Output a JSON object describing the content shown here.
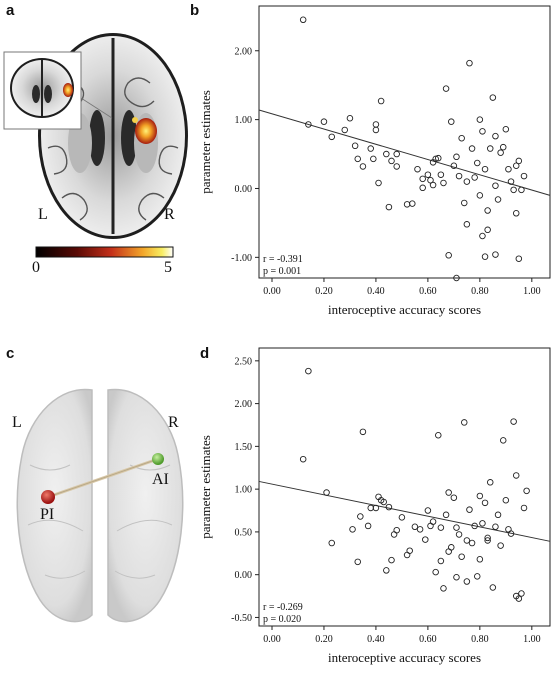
{
  "panels": {
    "a": {
      "letter": "a",
      "left_label": "L",
      "right_label": "R",
      "colorbar": {
        "min_label": "0",
        "max_label": "5",
        "min": 0,
        "max": 5
      }
    },
    "b": {
      "letter": "b"
    },
    "c": {
      "letter": "c",
      "left_label": "L",
      "right_label": "R",
      "node1_label": "PI",
      "node2_label": "AI",
      "colors": {
        "node1": "#b01c1c",
        "node2": "#6fc04a",
        "edge": "#d8c8a8"
      }
    },
    "d": {
      "letter": "d"
    }
  },
  "chart_data": [
    {
      "type": "scatter",
      "panel": "b",
      "xlabel": "interoceptive accuracy scores",
      "ylabel": "parameter estimates",
      "xlim": [
        -0.05,
        1.07
      ],
      "ylim": [
        -1.3,
        2.65
      ],
      "xticks": [
        "0.00",
        "0.20",
        "0.40",
        "0.60",
        "0.80",
        "1.00"
      ],
      "yticks": [
        "-1.00",
        "0.00",
        "1.00",
        "2.00"
      ],
      "xtick_values": [
        0,
        0.2,
        0.4,
        0.6,
        0.8,
        1.0
      ],
      "ytick_values": [
        -1,
        0,
        1,
        2
      ],
      "stats": [
        "r = -0.391",
        "p = 0.001"
      ],
      "fit_line": {
        "x": [
          -0.05,
          1.07
        ],
        "y": [
          1.14,
          -0.1
        ]
      },
      "points": [
        [
          0.12,
          2.45
        ],
        [
          0.14,
          0.93
        ],
        [
          0.2,
          0.97
        ],
        [
          0.23,
          0.75
        ],
        [
          0.28,
          0.85
        ],
        [
          0.3,
          1.02
        ],
        [
          0.32,
          0.62
        ],
        [
          0.33,
          0.43
        ],
        [
          0.35,
          0.32
        ],
        [
          0.38,
          0.58
        ],
        [
          0.39,
          0.43
        ],
        [
          0.4,
          0.85
        ],
        [
          0.4,
          0.93
        ],
        [
          0.41,
          0.08
        ],
        [
          0.42,
          1.27
        ],
        [
          0.44,
          0.5
        ],
        [
          0.45,
          -0.27
        ],
        [
          0.46,
          0.4
        ],
        [
          0.48,
          0.5
        ],
        [
          0.52,
          -0.23
        ],
        [
          0.54,
          -0.22
        ],
        [
          0.56,
          0.28
        ],
        [
          0.58,
          0.01
        ],
        [
          0.6,
          0.2
        ],
        [
          0.61,
          0.12
        ],
        [
          0.62,
          0.38
        ],
        [
          0.63,
          0.43
        ],
        [
          0.64,
          0.44
        ],
        [
          0.65,
          0.2
        ],
        [
          0.66,
          0.08
        ],
        [
          0.67,
          1.45
        ],
        [
          0.68,
          -0.97
        ],
        [
          0.69,
          0.97
        ],
        [
          0.7,
          0.33
        ],
        [
          0.71,
          0.46
        ],
        [
          0.72,
          0.18
        ],
        [
          0.73,
          0.73
        ],
        [
          0.74,
          -0.21
        ],
        [
          0.75,
          -0.52
        ],
        [
          0.75,
          0.1
        ],
        [
          0.76,
          1.82
        ],
        [
          0.77,
          0.58
        ],
        [
          0.78,
          0.16
        ],
        [
          0.79,
          0.37
        ],
        [
          0.8,
          1.0
        ],
        [
          0.8,
          -0.1
        ],
        [
          0.81,
          0.83
        ],
        [
          0.82,
          0.28
        ],
        [
          0.83,
          -0.32
        ],
        [
          0.83,
          -0.6
        ],
        [
          0.84,
          0.58
        ],
        [
          0.85,
          1.32
        ],
        [
          0.86,
          0.76
        ],
        [
          0.86,
          0.04
        ],
        [
          0.87,
          -0.16
        ],
        [
          0.88,
          0.52
        ],
        [
          0.89,
          0.6
        ],
        [
          0.9,
          0.86
        ],
        [
          0.91,
          0.28
        ],
        [
          0.92,
          0.1
        ],
        [
          0.93,
          -0.02
        ],
        [
          0.94,
          -0.36
        ],
        [
          0.94,
          0.33
        ],
        [
          0.95,
          0.4
        ],
        [
          0.95,
          -1.02
        ],
        [
          0.96,
          -0.02
        ],
        [
          0.97,
          0.18
        ],
        [
          0.81,
          -0.69
        ],
        [
          0.82,
          -0.99
        ],
        [
          0.71,
          -1.3
        ],
        [
          0.48,
          0.32
        ],
        [
          0.86,
          -0.96
        ],
        [
          0.62,
          0.05
        ],
        [
          0.58,
          0.14
        ]
      ]
    },
    {
      "type": "scatter",
      "panel": "d",
      "xlabel": "interoceptive accuracy scores",
      "ylabel": "parameter estimates",
      "xlim": [
        -0.05,
        1.07
      ],
      "ylim": [
        -0.6,
        2.65
      ],
      "xticks": [
        "0.00",
        "0.20",
        "0.40",
        "0.60",
        "0.80",
        "1.00"
      ],
      "yticks": [
        "-0.50",
        "0.00",
        "0.50",
        "1.00",
        "1.50",
        "2.00",
        "2.50"
      ],
      "xtick_values": [
        0,
        0.2,
        0.4,
        0.6,
        0.8,
        1.0
      ],
      "ytick_values": [
        -0.5,
        0,
        0.5,
        1,
        1.5,
        2,
        2.5
      ],
      "stats": [
        "r = -0.269",
        "p = 0.020"
      ],
      "fit_line": {
        "x": [
          -0.05,
          1.07
        ],
        "y": [
          1.09,
          0.39
        ]
      },
      "points": [
        [
          0.12,
          1.35
        ],
        [
          0.14,
          2.38
        ],
        [
          0.21,
          0.96
        ],
        [
          0.23,
          0.37
        ],
        [
          0.31,
          0.53
        ],
        [
          0.33,
          0.15
        ],
        [
          0.34,
          0.68
        ],
        [
          0.35,
          1.67
        ],
        [
          0.37,
          0.57
        ],
        [
          0.38,
          0.78
        ],
        [
          0.4,
          0.78
        ],
        [
          0.41,
          0.91
        ],
        [
          0.42,
          0.87
        ],
        [
          0.43,
          0.85
        ],
        [
          0.44,
          0.05
        ],
        [
          0.45,
          0.79
        ],
        [
          0.46,
          0.17
        ],
        [
          0.47,
          0.47
        ],
        [
          0.48,
          0.52
        ],
        [
          0.5,
          0.67
        ],
        [
          0.52,
          0.23
        ],
        [
          0.53,
          0.28
        ],
        [
          0.55,
          0.56
        ],
        [
          0.57,
          0.53
        ],
        [
          0.59,
          0.41
        ],
        [
          0.6,
          0.75
        ],
        [
          0.61,
          0.57
        ],
        [
          0.62,
          0.62
        ],
        [
          0.63,
          0.03
        ],
        [
          0.64,
          1.63
        ],
        [
          0.65,
          0.55
        ],
        [
          0.66,
          -0.16
        ],
        [
          0.67,
          0.7
        ],
        [
          0.68,
          0.96
        ],
        [
          0.69,
          0.32
        ],
        [
          0.7,
          0.9
        ],
        [
          0.71,
          0.55
        ],
        [
          0.72,
          0.47
        ],
        [
          0.73,
          0.21
        ],
        [
          0.74,
          1.78
        ],
        [
          0.75,
          -0.08
        ],
        [
          0.76,
          0.76
        ],
        [
          0.77,
          0.37
        ],
        [
          0.78,
          0.57
        ],
        [
          0.79,
          -0.02
        ],
        [
          0.8,
          0.92
        ],
        [
          0.8,
          0.18
        ],
        [
          0.81,
          0.6
        ],
        [
          0.82,
          0.84
        ],
        [
          0.83,
          0.43
        ],
        [
          0.83,
          0.4
        ],
        [
          0.84,
          1.08
        ],
        [
          0.85,
          -0.15
        ],
        [
          0.86,
          0.56
        ],
        [
          0.87,
          0.7
        ],
        [
          0.88,
          0.34
        ],
        [
          0.89,
          1.57
        ],
        [
          0.9,
          0.87
        ],
        [
          0.91,
          0.53
        ],
        [
          0.92,
          0.48
        ],
        [
          0.93,
          1.79
        ],
        [
          0.94,
          1.16
        ],
        [
          0.94,
          -0.25
        ],
        [
          0.95,
          -0.28
        ],
        [
          0.96,
          -0.22
        ],
        [
          0.97,
          0.78
        ],
        [
          0.98,
          0.98
        ],
        [
          0.65,
          0.16
        ],
        [
          0.71,
          -0.03
        ],
        [
          0.75,
          0.4
        ],
        [
          0.68,
          0.27
        ]
      ]
    }
  ]
}
